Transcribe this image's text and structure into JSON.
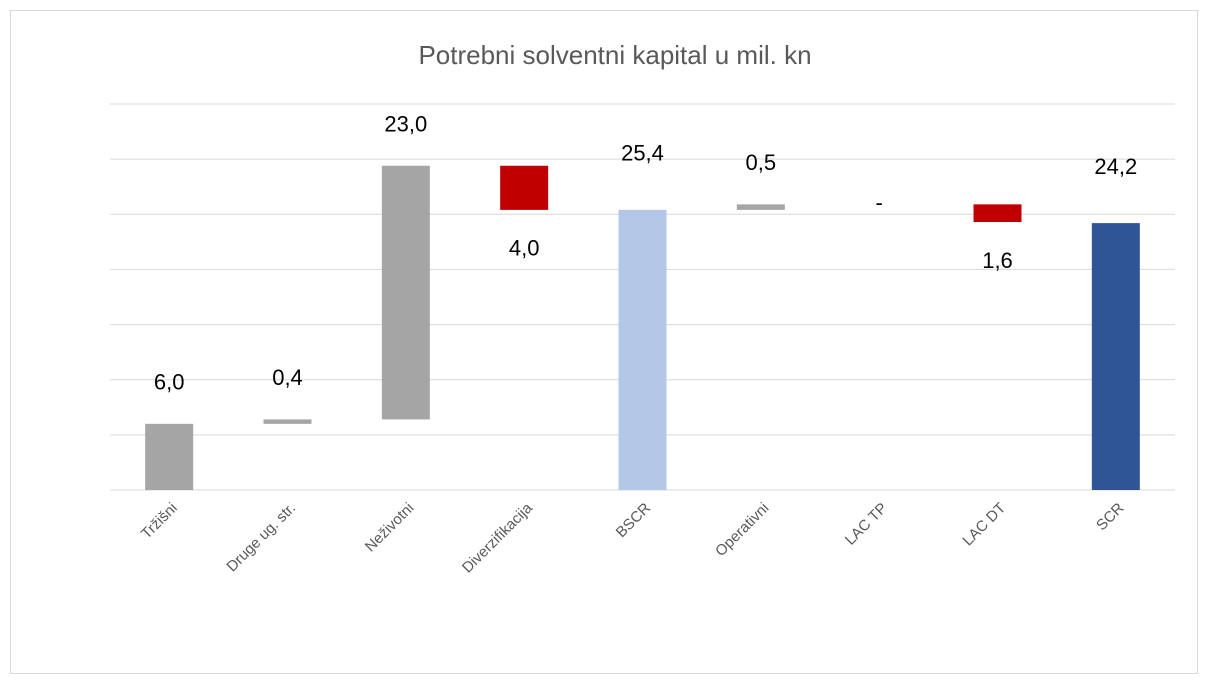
{
  "chart_data": {
    "type": "waterfall",
    "title": "Potrebni solventni kapital u mil. kn",
    "categories": [
      "Tržišni",
      "Druge ug. str.",
      "Neživotni",
      "Diverzifikacija",
      "BSCR",
      "Operativni",
      "LAC TP",
      "LAC DT",
      "SCR"
    ],
    "values": [
      6.0,
      0.4,
      23.0,
      -4.0,
      25.4,
      0.5,
      0,
      -1.6,
      24.2
    ],
    "value_labels": [
      "6,0",
      "0,4",
      "23,0",
      "4,0",
      "25,4",
      "0,5",
      "-",
      "1,6",
      "24,2"
    ],
    "is_total": [
      false,
      false,
      false,
      false,
      true,
      false,
      false,
      false,
      true
    ],
    "colors": [
      "#a5a5a5",
      "#a5a5a5",
      "#a5a5a5",
      "#c00000",
      "#b4c7e7",
      "#a5a5a5",
      "#a5a5a5",
      "#c00000",
      "#2f5597"
    ],
    "ylim": [
      0,
      35
    ],
    "yticks": [
      0,
      5,
      10,
      15,
      20,
      25,
      30,
      35
    ],
    "grid": true
  }
}
